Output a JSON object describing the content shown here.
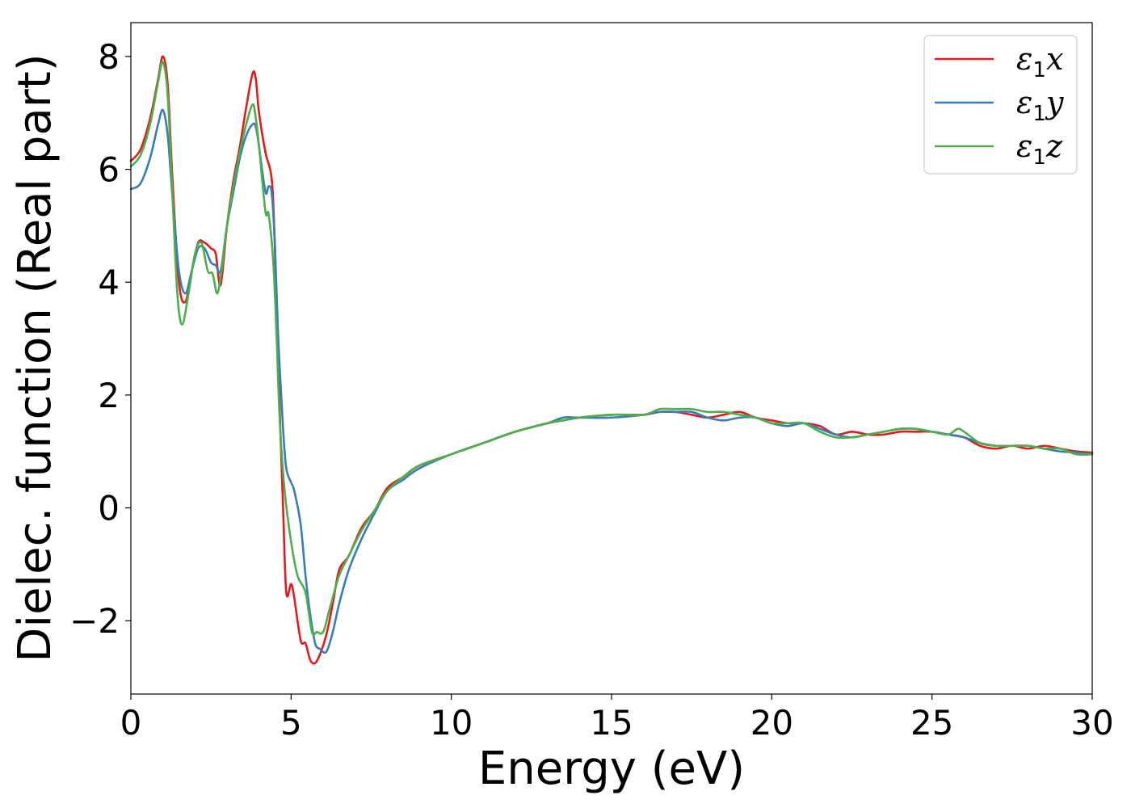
{
  "chart_data": {
    "type": "line",
    "title": "",
    "xlabel": "Energy (eV)",
    "ylabel": "Dielec. function (Real part)",
    "xlim": [
      0,
      30
    ],
    "ylim": [
      -3.3,
      8.6
    ],
    "xticks": [
      0,
      5,
      10,
      15,
      20,
      25,
      30
    ],
    "xtick_labels": [
      "0",
      "5",
      "10",
      "15",
      "20",
      "25",
      "30"
    ],
    "yticks": [
      -2,
      0,
      2,
      4,
      6,
      8
    ],
    "ytick_labels": [
      "−2",
      "0",
      "2",
      "4",
      "6",
      "8"
    ],
    "grid": false,
    "legend_position": "top-right",
    "series": [
      {
        "name": "ε₁x",
        "label_symbol": "ε",
        "label_sub": "1",
        "label_var": "x",
        "color": "#e41a1c",
        "x": [
          0,
          0.3,
          0.6,
          0.85,
          1.0,
          1.15,
          1.3,
          1.5,
          1.7,
          1.9,
          2.1,
          2.3,
          2.5,
          2.65,
          2.8,
          3.0,
          3.2,
          3.4,
          3.6,
          3.8,
          3.9,
          4.0,
          4.2,
          4.4,
          4.5,
          4.6,
          4.75,
          4.85,
          5.0,
          5.1,
          5.3,
          5.45,
          5.6,
          5.75,
          5.9,
          6.1,
          6.3,
          6.5,
          6.8,
          7.2,
          7.6,
          8.0,
          8.5,
          9.0,
          10.0,
          11.0,
          12.0,
          13.0,
          13.5,
          14.0,
          15.0,
          16.0,
          16.5,
          17.0,
          17.5,
          18.0,
          18.5,
          19.0,
          19.5,
          20.0,
          20.5,
          21.0,
          21.5,
          22.0,
          22.5,
          23.0,
          23.5,
          24.0,
          24.5,
          25.0,
          25.5,
          26.0,
          26.5,
          27.0,
          27.5,
          28.0,
          28.5,
          29.0,
          29.5,
          30.0
        ],
        "values": [
          6.15,
          6.35,
          6.9,
          7.6,
          8.0,
          7.5,
          5.8,
          4.0,
          3.65,
          4.2,
          4.7,
          4.7,
          4.6,
          4.5,
          3.95,
          5.0,
          5.8,
          6.4,
          7.1,
          7.7,
          7.6,
          7.0,
          6.3,
          5.8,
          4.5,
          2.5,
          0.0,
          -1.5,
          -1.35,
          -1.6,
          -2.35,
          -2.4,
          -2.7,
          -2.75,
          -2.6,
          -2.25,
          -1.7,
          -1.1,
          -0.85,
          -0.35,
          -0.05,
          0.35,
          0.55,
          0.75,
          0.95,
          1.15,
          1.35,
          1.5,
          1.55,
          1.6,
          1.65,
          1.65,
          1.7,
          1.7,
          1.65,
          1.6,
          1.65,
          1.7,
          1.6,
          1.55,
          1.5,
          1.5,
          1.45,
          1.3,
          1.35,
          1.3,
          1.3,
          1.35,
          1.35,
          1.35,
          1.3,
          1.25,
          1.1,
          1.05,
          1.1,
          1.05,
          1.1,
          1.05,
          1.0,
          0.98
        ]
      },
      {
        "name": "ε₁y",
        "label_symbol": "ε",
        "label_sub": "1",
        "label_var": "y",
        "color": "#377eb8",
        "x": [
          0,
          0.3,
          0.6,
          0.85,
          1.0,
          1.15,
          1.3,
          1.5,
          1.7,
          1.9,
          2.1,
          2.3,
          2.5,
          2.65,
          2.8,
          3.0,
          3.2,
          3.4,
          3.6,
          3.8,
          3.9,
          4.0,
          4.2,
          4.3,
          4.4,
          4.5,
          4.6,
          4.75,
          4.85,
          5.0,
          5.1,
          5.3,
          5.45,
          5.6,
          5.75,
          5.9,
          6.1,
          6.3,
          6.5,
          6.8,
          7.2,
          7.6,
          8.0,
          8.5,
          9.0,
          10.0,
          11.0,
          12.0,
          13.0,
          13.5,
          14.0,
          15.0,
          16.0,
          16.5,
          17.0,
          17.5,
          18.0,
          18.5,
          19.0,
          19.5,
          20.0,
          20.5,
          21.0,
          21.5,
          22.0,
          22.5,
          23.0,
          23.5,
          24.0,
          24.5,
          25.0,
          25.5,
          26.0,
          26.5,
          27.0,
          27.5,
          28.0,
          28.5,
          29.0,
          29.5,
          30.0
        ],
        "values": [
          5.65,
          5.75,
          6.2,
          6.8,
          7.05,
          6.6,
          5.5,
          4.2,
          3.8,
          4.2,
          4.6,
          4.6,
          4.35,
          4.3,
          4.2,
          5.0,
          5.6,
          6.2,
          6.6,
          6.8,
          6.75,
          6.4,
          5.6,
          5.7,
          5.55,
          4.6,
          3.0,
          1.4,
          0.7,
          0.45,
          0.3,
          -0.3,
          -1.2,
          -1.9,
          -2.4,
          -2.5,
          -2.55,
          -2.2,
          -1.7,
          -1.1,
          -0.55,
          -0.1,
          0.3,
          0.5,
          0.7,
          0.95,
          1.15,
          1.35,
          1.5,
          1.6,
          1.6,
          1.6,
          1.65,
          1.7,
          1.7,
          1.7,
          1.6,
          1.55,
          1.6,
          1.6,
          1.5,
          1.45,
          1.5,
          1.4,
          1.3,
          1.25,
          1.3,
          1.35,
          1.4,
          1.4,
          1.35,
          1.3,
          1.25,
          1.15,
          1.1,
          1.1,
          1.1,
          1.05,
          1.0,
          0.98,
          0.95
        ]
      },
      {
        "name": "ε₁z",
        "label_symbol": "ε",
        "label_sub": "1",
        "label_var": "z",
        "color": "#4daf4a",
        "x": [
          0,
          0.3,
          0.6,
          0.85,
          1.0,
          1.15,
          1.3,
          1.45,
          1.6,
          1.8,
          2.0,
          2.2,
          2.4,
          2.55,
          2.7,
          2.85,
          3.0,
          3.2,
          3.4,
          3.6,
          3.8,
          3.9,
          4.0,
          4.2,
          4.3,
          4.45,
          4.55,
          4.65,
          4.8,
          5.0,
          5.2,
          5.45,
          5.65,
          5.8,
          6.0,
          6.2,
          6.5,
          6.8,
          7.2,
          7.6,
          8.0,
          8.5,
          9.0,
          10.0,
          11.0,
          12.0,
          13.0,
          13.5,
          14.0,
          15.0,
          16.0,
          16.5,
          17.0,
          17.5,
          18.0,
          18.5,
          19.0,
          19.5,
          20.0,
          20.5,
          21.0,
          21.5,
          22.0,
          22.5,
          23.0,
          23.5,
          24.0,
          24.5,
          25.0,
          25.5,
          25.8,
          26.0,
          26.5,
          27.0,
          27.5,
          28.0,
          28.5,
          29.0,
          29.5,
          30.0
        ],
        "values": [
          6.05,
          6.25,
          6.8,
          7.55,
          7.9,
          7.3,
          5.5,
          3.8,
          3.25,
          3.8,
          4.5,
          4.7,
          4.2,
          4.15,
          3.8,
          4.3,
          5.0,
          5.7,
          6.3,
          6.8,
          7.15,
          6.9,
          6.4,
          5.25,
          5.2,
          4.3,
          3.0,
          1.5,
          0.3,
          -0.6,
          -1.2,
          -1.5,
          -2.2,
          -2.2,
          -2.2,
          -1.8,
          -1.2,
          -0.85,
          -0.4,
          -0.05,
          0.3,
          0.55,
          0.75,
          0.95,
          1.15,
          1.35,
          1.5,
          1.55,
          1.6,
          1.65,
          1.65,
          1.75,
          1.75,
          1.75,
          1.7,
          1.7,
          1.65,
          1.6,
          1.5,
          1.5,
          1.5,
          1.35,
          1.25,
          1.25,
          1.3,
          1.35,
          1.4,
          1.4,
          1.35,
          1.3,
          1.4,
          1.35,
          1.15,
          1.1,
          1.1,
          1.1,
          1.05,
          1.05,
          0.95,
          0.95
        ]
      }
    ]
  }
}
